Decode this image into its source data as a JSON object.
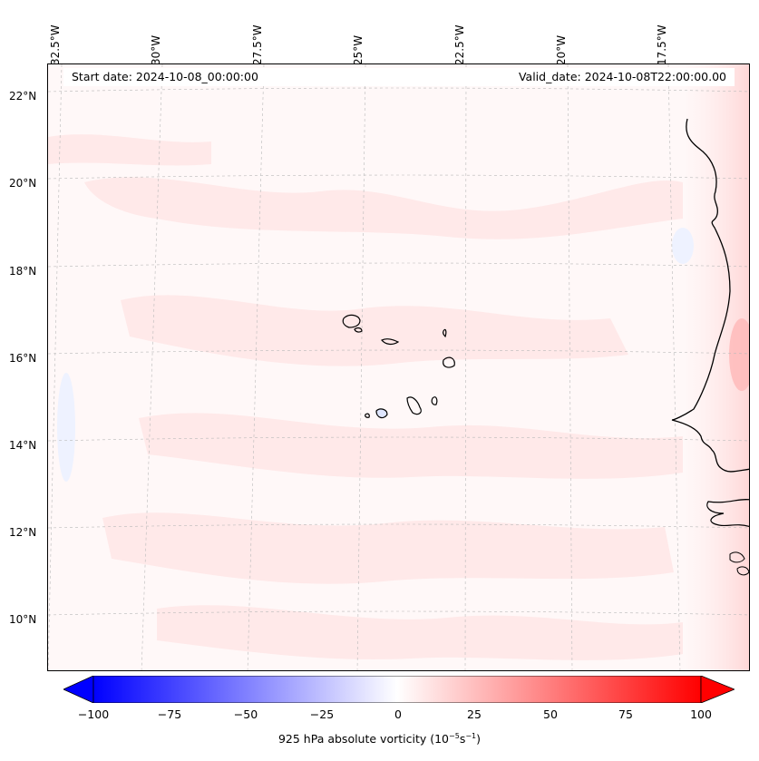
{
  "map": {
    "lon_labels": [
      "32.5°W",
      "30°W",
      "27.5°W",
      "25°W",
      "22.5°W",
      "20°W",
      "17.5°W"
    ],
    "lat_labels": [
      "22°N",
      "20°N",
      "18°N",
      "16°N",
      "14°N",
      "12°N",
      "10°N"
    ],
    "start_date": "Start date: 2024-10-08_00:00:00",
    "valid_date": "Valid_date: 2024-10-08T22:00:00.00",
    "field_colors": {
      "low": "#0000ff",
      "mid": "#ffffff",
      "high": "#ff0000",
      "background_tint": "#fff8f8",
      "coast_line": "#000000"
    }
  },
  "colorbar": {
    "ticks": [
      "−100",
      "−75",
      "−50",
      "−25",
      "0",
      "25",
      "50",
      "75",
      "100"
    ],
    "label_main": "925 hPa absolute vorticity (10",
    "label_exp1": "−5",
    "label_mid": "s",
    "label_exp2": "−1",
    "label_end": ")",
    "range": [
      -100,
      100
    ]
  }
}
